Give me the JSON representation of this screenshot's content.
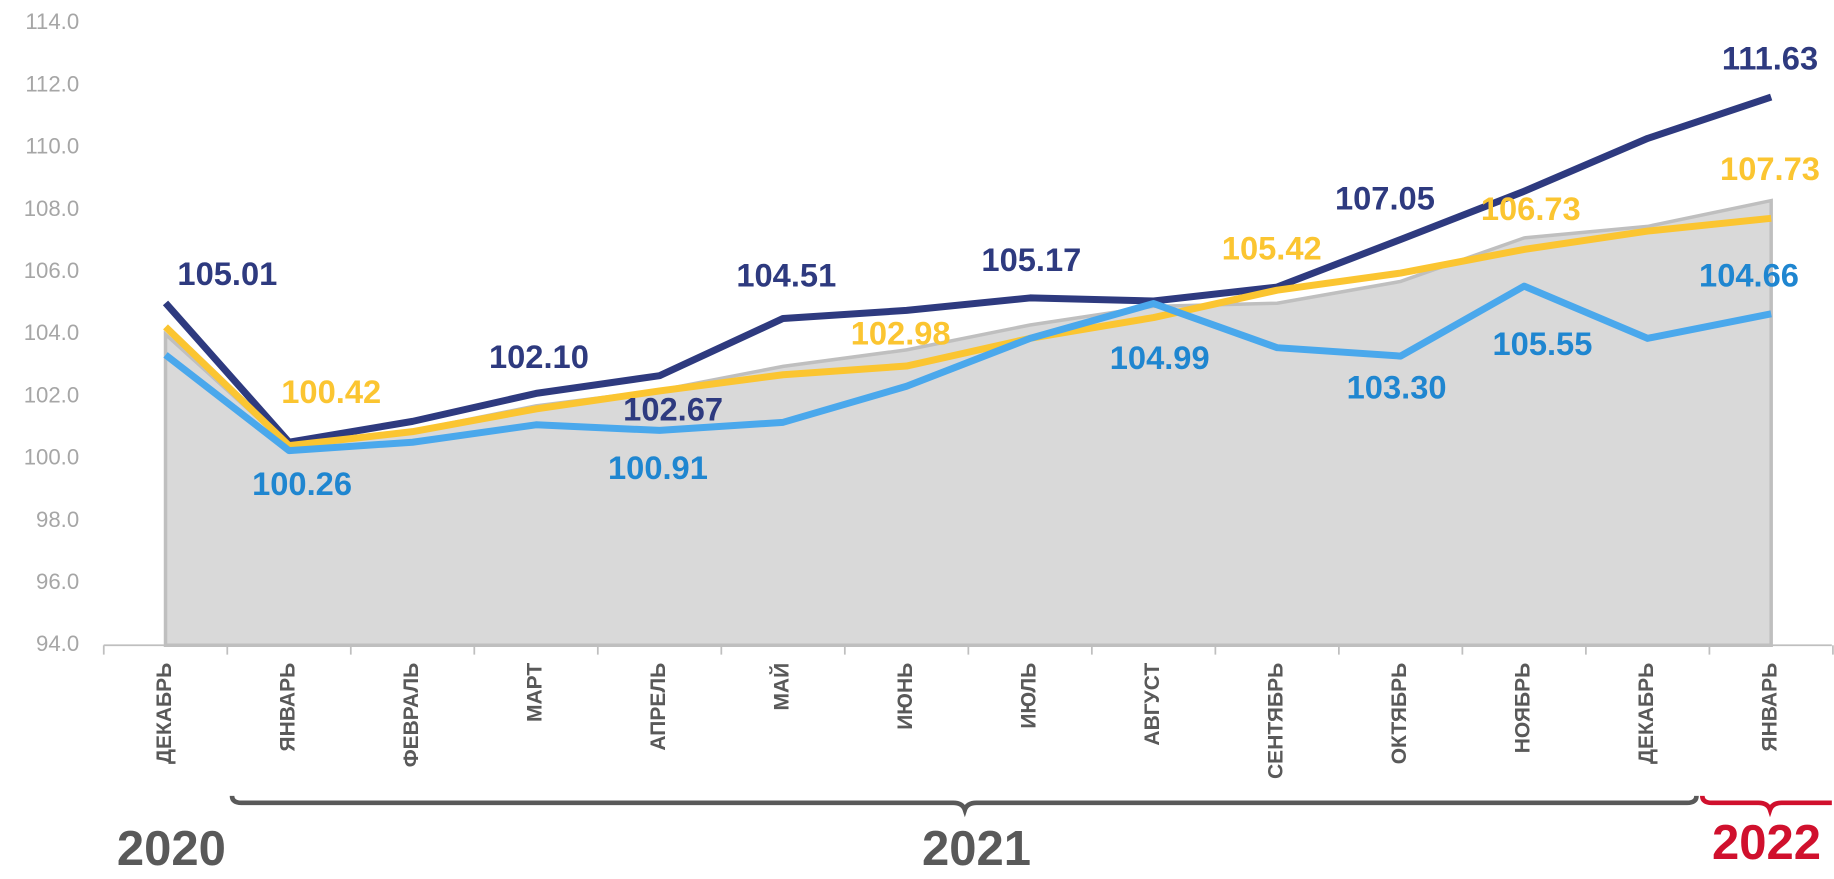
{
  "chart_data": {
    "type": "line",
    "categories": [
      "ДЕКАБРЬ",
      "ЯНВАРЬ",
      "ФЕВРАЛЬ",
      "МАРТ",
      "АПРЕЛЬ",
      "МАЙ",
      "ИЮНЬ",
      "ИЮЛЬ",
      "АВГУСТ",
      "СЕНТЯБРЬ",
      "ОКТЯБРЬ",
      "НОЯБРЬ",
      "ДЕКАБРЬ",
      "ЯНВАРЬ"
    ],
    "years": [
      {
        "label": "2020",
        "color": "#595959"
      },
      {
        "label": "2021",
        "color": "#595959"
      },
      {
        "label": "2022",
        "color": "#d0102d"
      }
    ],
    "ylim": [
      94,
      114
    ],
    "yticks": [
      {
        "value": 94,
        "label": "94.0"
      },
      {
        "value": 96,
        "label": "96.0"
      },
      {
        "value": 98,
        "label": "98.0"
      },
      {
        "value": 100,
        "label": "100.0"
      },
      {
        "value": 102,
        "label": "102.0"
      },
      {
        "value": 104,
        "label": "104.0"
      },
      {
        "value": 106,
        "label": "106.0"
      },
      {
        "value": 108,
        "label": "108.0"
      },
      {
        "value": 110,
        "label": "110.0"
      },
      {
        "value": 112,
        "label": "112.0"
      },
      {
        "value": 114,
        "label": "114.0"
      }
    ],
    "series": [
      {
        "kind": "area",
        "color": "#d9d9d9",
        "values": [
          104.0,
          100.4,
          100.9,
          101.7,
          102.2,
          102.97,
          103.5,
          104.3,
          104.9,
          105.0,
          105.7,
          107.1,
          107.47,
          108.3
        ]
      },
      {
        "color": "#2e3a7f",
        "values": [
          105.01,
          100.53,
          101.2,
          102.1,
          102.67,
          104.51,
          104.77,
          105.17,
          105.07,
          105.52,
          107.05,
          108.6,
          110.3,
          111.63
        ],
        "value_labels": [
          "105.01",
          null,
          null,
          "102.10",
          "102.67",
          "104.51",
          null,
          "105.17",
          null,
          null,
          "107.05",
          null,
          null,
          "111.63"
        ]
      },
      {
        "color": "#fbc531",
        "values": [
          104.24,
          100.42,
          100.87,
          101.6,
          102.18,
          102.7,
          102.98,
          103.87,
          104.54,
          105.42,
          105.97,
          106.73,
          107.32,
          107.73
        ],
        "value_labels": [
          null,
          "100.42",
          null,
          null,
          null,
          null,
          "102.98",
          null,
          null,
          "105.42",
          null,
          "106.73",
          null,
          "107.73"
        ]
      },
      {
        "color": "#4aa8ec",
        "values": [
          103.34,
          100.26,
          100.53,
          101.09,
          100.91,
          101.17,
          102.33,
          103.87,
          104.99,
          103.57,
          103.3,
          105.55,
          103.87,
          104.66
        ],
        "value_labels": [
          null,
          "100.26",
          null,
          null,
          "100.91",
          null,
          null,
          null,
          "104.99",
          null,
          "103.30",
          "105.55",
          null,
          "104.66"
        ]
      }
    ]
  }
}
